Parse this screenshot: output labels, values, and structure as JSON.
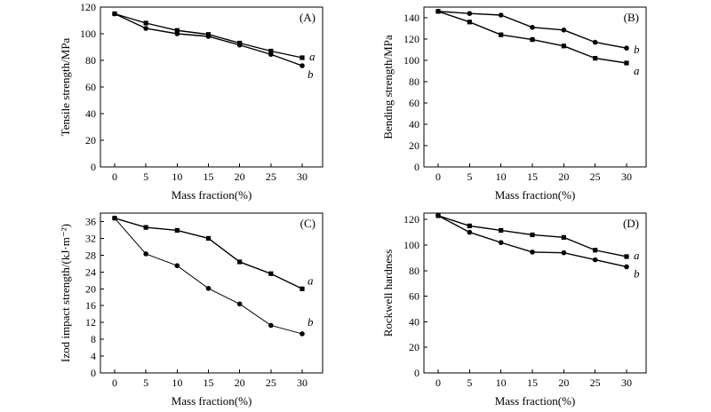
{
  "chart_data": [
    {
      "type": "line",
      "panel_label": "(A)",
      "xlabel": "Mass fraction(%)",
      "ylabel": "Tensile strength/MPa",
      "x": [
        0,
        5,
        10,
        15,
        20,
        25,
        30
      ],
      "xticks": [
        "0",
        "5",
        "10",
        "15",
        "20",
        "25",
        "30"
      ],
      "ylim": [
        0,
        120
      ],
      "yticks": [
        "0",
        "20",
        "40",
        "60",
        "80",
        "100",
        "120"
      ],
      "series": [
        {
          "name": "a",
          "marker": "square",
          "values": [
            115,
            108,
            102.5,
            99.5,
            93,
            87,
            82
          ]
        },
        {
          "name": "b",
          "marker": "circle",
          "values": [
            115,
            104,
            100,
            98,
            91.5,
            84.5,
            76
          ]
        }
      ]
    },
    {
      "type": "line",
      "panel_label": "(B)",
      "xlabel": "Mass fraction(%)",
      "ylabel": "Bending strength/MPa",
      "x": [
        0,
        5,
        10,
        15,
        20,
        25,
        30
      ],
      "xticks": [
        "0",
        "5",
        "10",
        "15",
        "20",
        "25",
        "30"
      ],
      "ylim": [
        0,
        150
      ],
      "yticks": [
        "0",
        "20",
        "40",
        "60",
        "80",
        "100",
        "120",
        "140"
      ],
      "series": [
        {
          "name": "a",
          "marker": "square",
          "values": [
            146,
            136,
            124,
            119.5,
            113.5,
            102,
            97.5
          ]
        },
        {
          "name": "b",
          "marker": "circle",
          "values": [
            146,
            144,
            142.5,
            131,
            128.5,
            117,
            111.5
          ]
        }
      ]
    },
    {
      "type": "line",
      "panel_label": "(C)",
      "xlabel": "Mass fraction(%)",
      "ylabel": "Izod impact strength/(kJ·m⁻²)",
      "x": [
        0,
        5,
        10,
        15,
        20,
        25,
        30
      ],
      "xticks": [
        "0",
        "5",
        "10",
        "15",
        "20",
        "25",
        "30"
      ],
      "ylim": [
        0,
        38
      ],
      "yticks": [
        "0",
        "4",
        "8",
        "12",
        "16",
        "20",
        "24",
        "28",
        "32",
        "36"
      ],
      "series": [
        {
          "name": "a",
          "marker": "square",
          "values": [
            36.8,
            34.6,
            33.9,
            32,
            26.4,
            23.6,
            20
          ]
        },
        {
          "name": "b",
          "marker": "circle",
          "values": [
            36.8,
            28.3,
            25.5,
            20.1,
            16.4,
            11.3,
            9.3
          ]
        }
      ]
    },
    {
      "type": "line",
      "panel_label": "(D)",
      "xlabel": "Mass fraction(%)",
      "ylabel": "Rockwell hardness",
      "x": [
        0,
        5,
        10,
        15,
        20,
        25,
        30
      ],
      "xticks": [
        "0",
        "5",
        "10",
        "15",
        "20",
        "25",
        "30"
      ],
      "ylim": [
        0,
        125
      ],
      "yticks": [
        "0",
        "20",
        "40",
        "60",
        "80",
        "100",
        "120"
      ],
      "series": [
        {
          "name": "a",
          "marker": "square",
          "values": [
            123,
            115,
            111.5,
            108,
            106,
            96,
            91
          ]
        },
        {
          "name": "b",
          "marker": "circle",
          "values": [
            123,
            110,
            102,
            94.5,
            94,
            88.5,
            83
          ]
        }
      ]
    }
  ]
}
